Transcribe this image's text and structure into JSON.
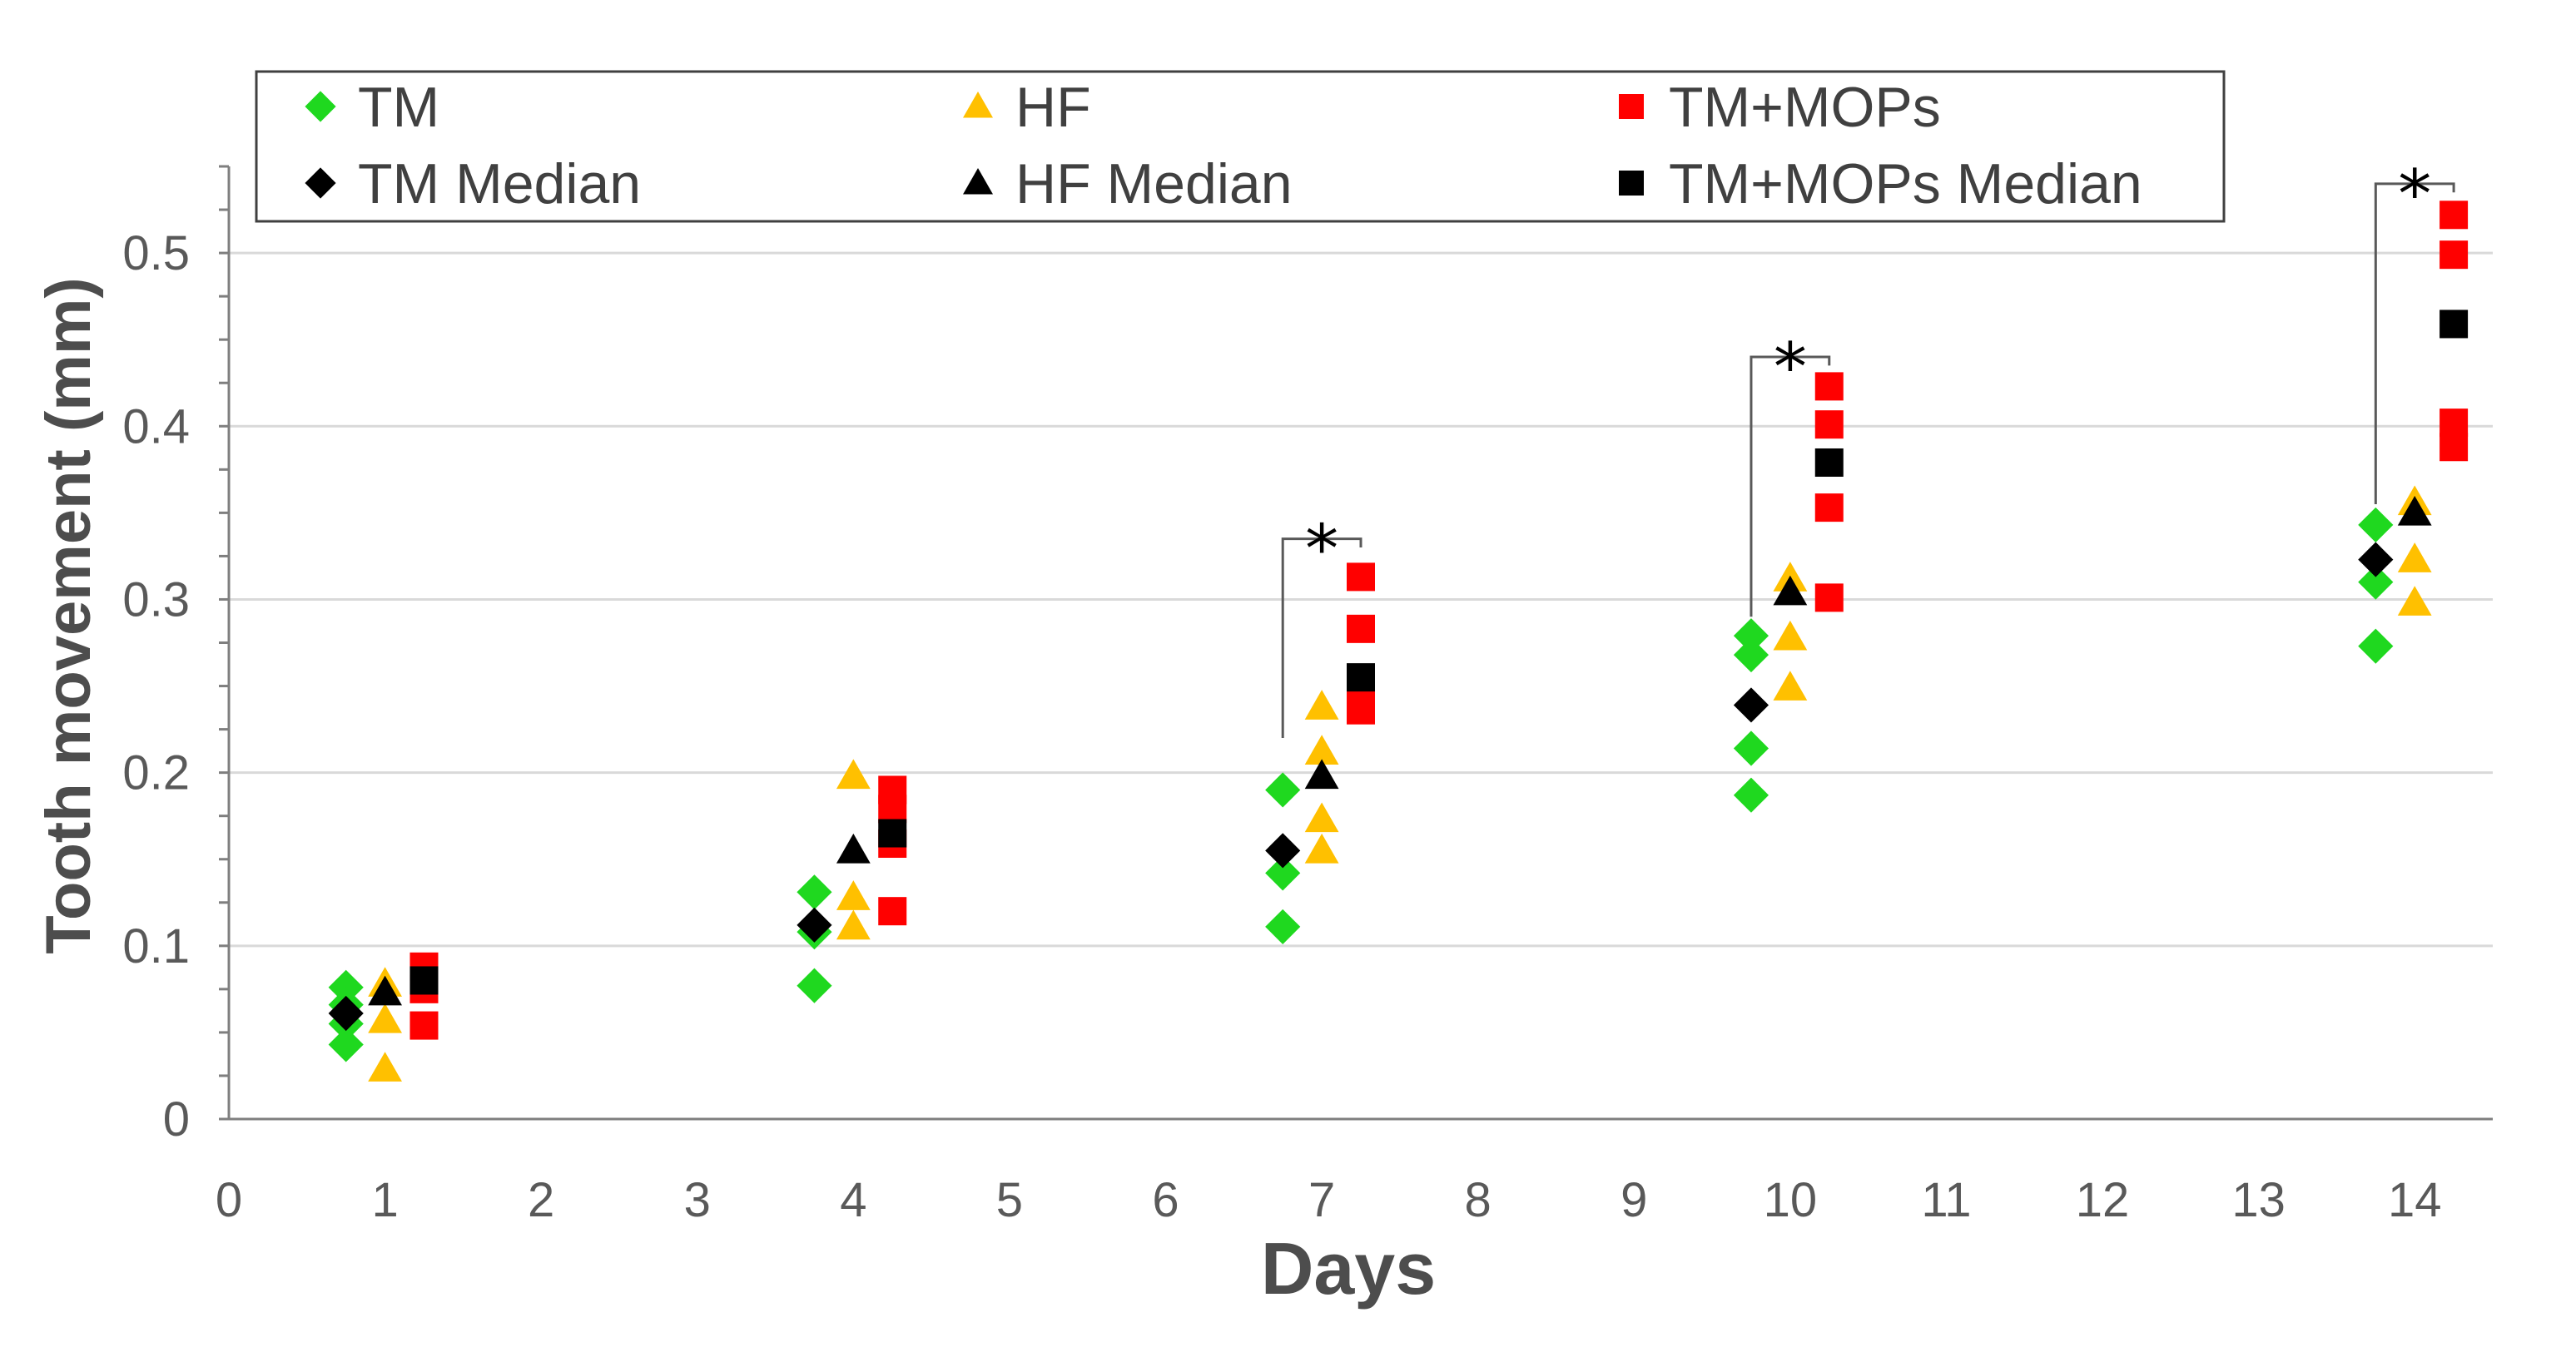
{
  "chart_data": {
    "type": "scatter",
    "xlabel": "Days",
    "ylabel": "Tooth movement (mm)",
    "xlim": [
      0,
      14.5
    ],
    "ylim": [
      0,
      0.55
    ],
    "x_ticks": [
      "0",
      "1",
      "2",
      "3",
      "4",
      "5",
      "6",
      "7",
      "8",
      "9",
      "10",
      "11",
      "12",
      "13",
      "14"
    ],
    "y_ticks": [
      "0",
      "0.1",
      "0.2",
      "0.3",
      "0.4",
      "0.5"
    ],
    "y_tick_values": [
      0,
      0.1,
      0.2,
      0.3,
      0.4,
      0.5
    ],
    "grid": "horizontal",
    "legend_position": "top",
    "series": [
      {
        "name": "TM",
        "marker": "diamond",
        "color": "#1fd81f",
        "x": [
          0.75,
          0.75,
          0.75,
          0.75,
          3.75,
          3.75,
          3.75,
          6.75,
          6.75,
          6.75,
          9.75,
          9.75,
          9.75,
          9.75,
          13.75,
          13.75,
          13.75
        ],
        "y": [
          0.076,
          0.066,
          0.055,
          0.043,
          0.131,
          0.108,
          0.077,
          0.19,
          0.142,
          0.111,
          0.279,
          0.268,
          0.214,
          0.187,
          0.343,
          0.31,
          0.273
        ]
      },
      {
        "name": "HF",
        "marker": "triangle",
        "color": "#ffc000",
        "x": [
          1,
          1,
          1,
          4,
          4,
          4,
          7,
          7,
          7,
          7,
          10,
          10,
          10,
          14,
          14,
          14
        ],
        "y": [
          0.078,
          0.057,
          0.029,
          0.198,
          0.128,
          0.111,
          0.238,
          0.212,
          0.173,
          0.155,
          0.312,
          0.278,
          0.249,
          0.356,
          0.323,
          0.298
        ]
      },
      {
        "name": "TM+MOPs",
        "marker": "square",
        "color": "#ff0000",
        "x": [
          1.25,
          1.25,
          1.25,
          4.25,
          4.25,
          4.25,
          4.25,
          7.25,
          7.25,
          7.25,
          7.25,
          10.25,
          10.25,
          10.25,
          10.25,
          14.25,
          14.25,
          14.25,
          14.25
        ],
        "y": [
          0.088,
          0.075,
          0.054,
          0.19,
          0.179,
          0.159,
          0.12,
          0.313,
          0.283,
          0.246,
          0.236,
          0.423,
          0.401,
          0.353,
          0.301,
          0.522,
          0.499,
          0.402,
          0.388
        ]
      },
      {
        "name": "TM Median",
        "marker": "diamond",
        "color": "#000000",
        "x": [
          0.75,
          3.75,
          6.75,
          9.75,
          13.75
        ],
        "y": [
          0.061,
          0.112,
          0.155,
          0.239,
          0.323
        ]
      },
      {
        "name": "HF Median",
        "marker": "triangle",
        "color": "#000000",
        "x": [
          1,
          4,
          7,
          10,
          14
        ],
        "y": [
          0.073,
          0.155,
          0.198,
          0.304,
          0.35
        ]
      },
      {
        "name": "TM+MOPs Median",
        "marker": "square",
        "color": "#000000",
        "x": [
          1.25,
          4.25,
          7.25,
          10.25,
          14.25
        ],
        "y": [
          0.08,
          0.165,
          0.255,
          0.379,
          0.459
        ]
      }
    ],
    "legend_order": [
      0,
      1,
      2,
      3,
      4,
      5
    ],
    "annotations": [
      {
        "text": "*",
        "x1": 6.75,
        "x2": 7.25,
        "y_left": 0.22,
        "y_right": 0.33,
        "y_top": 0.335
      },
      {
        "text": "*",
        "x1": 9.75,
        "x2": 10.25,
        "y_left": 0.29,
        "y_right": 0.435,
        "y_top": 0.44
      },
      {
        "text": "*",
        "x1": 13.75,
        "x2": 14.25,
        "y_left": 0.355,
        "y_right": 0.535,
        "y_top": 0.54
      }
    ]
  }
}
